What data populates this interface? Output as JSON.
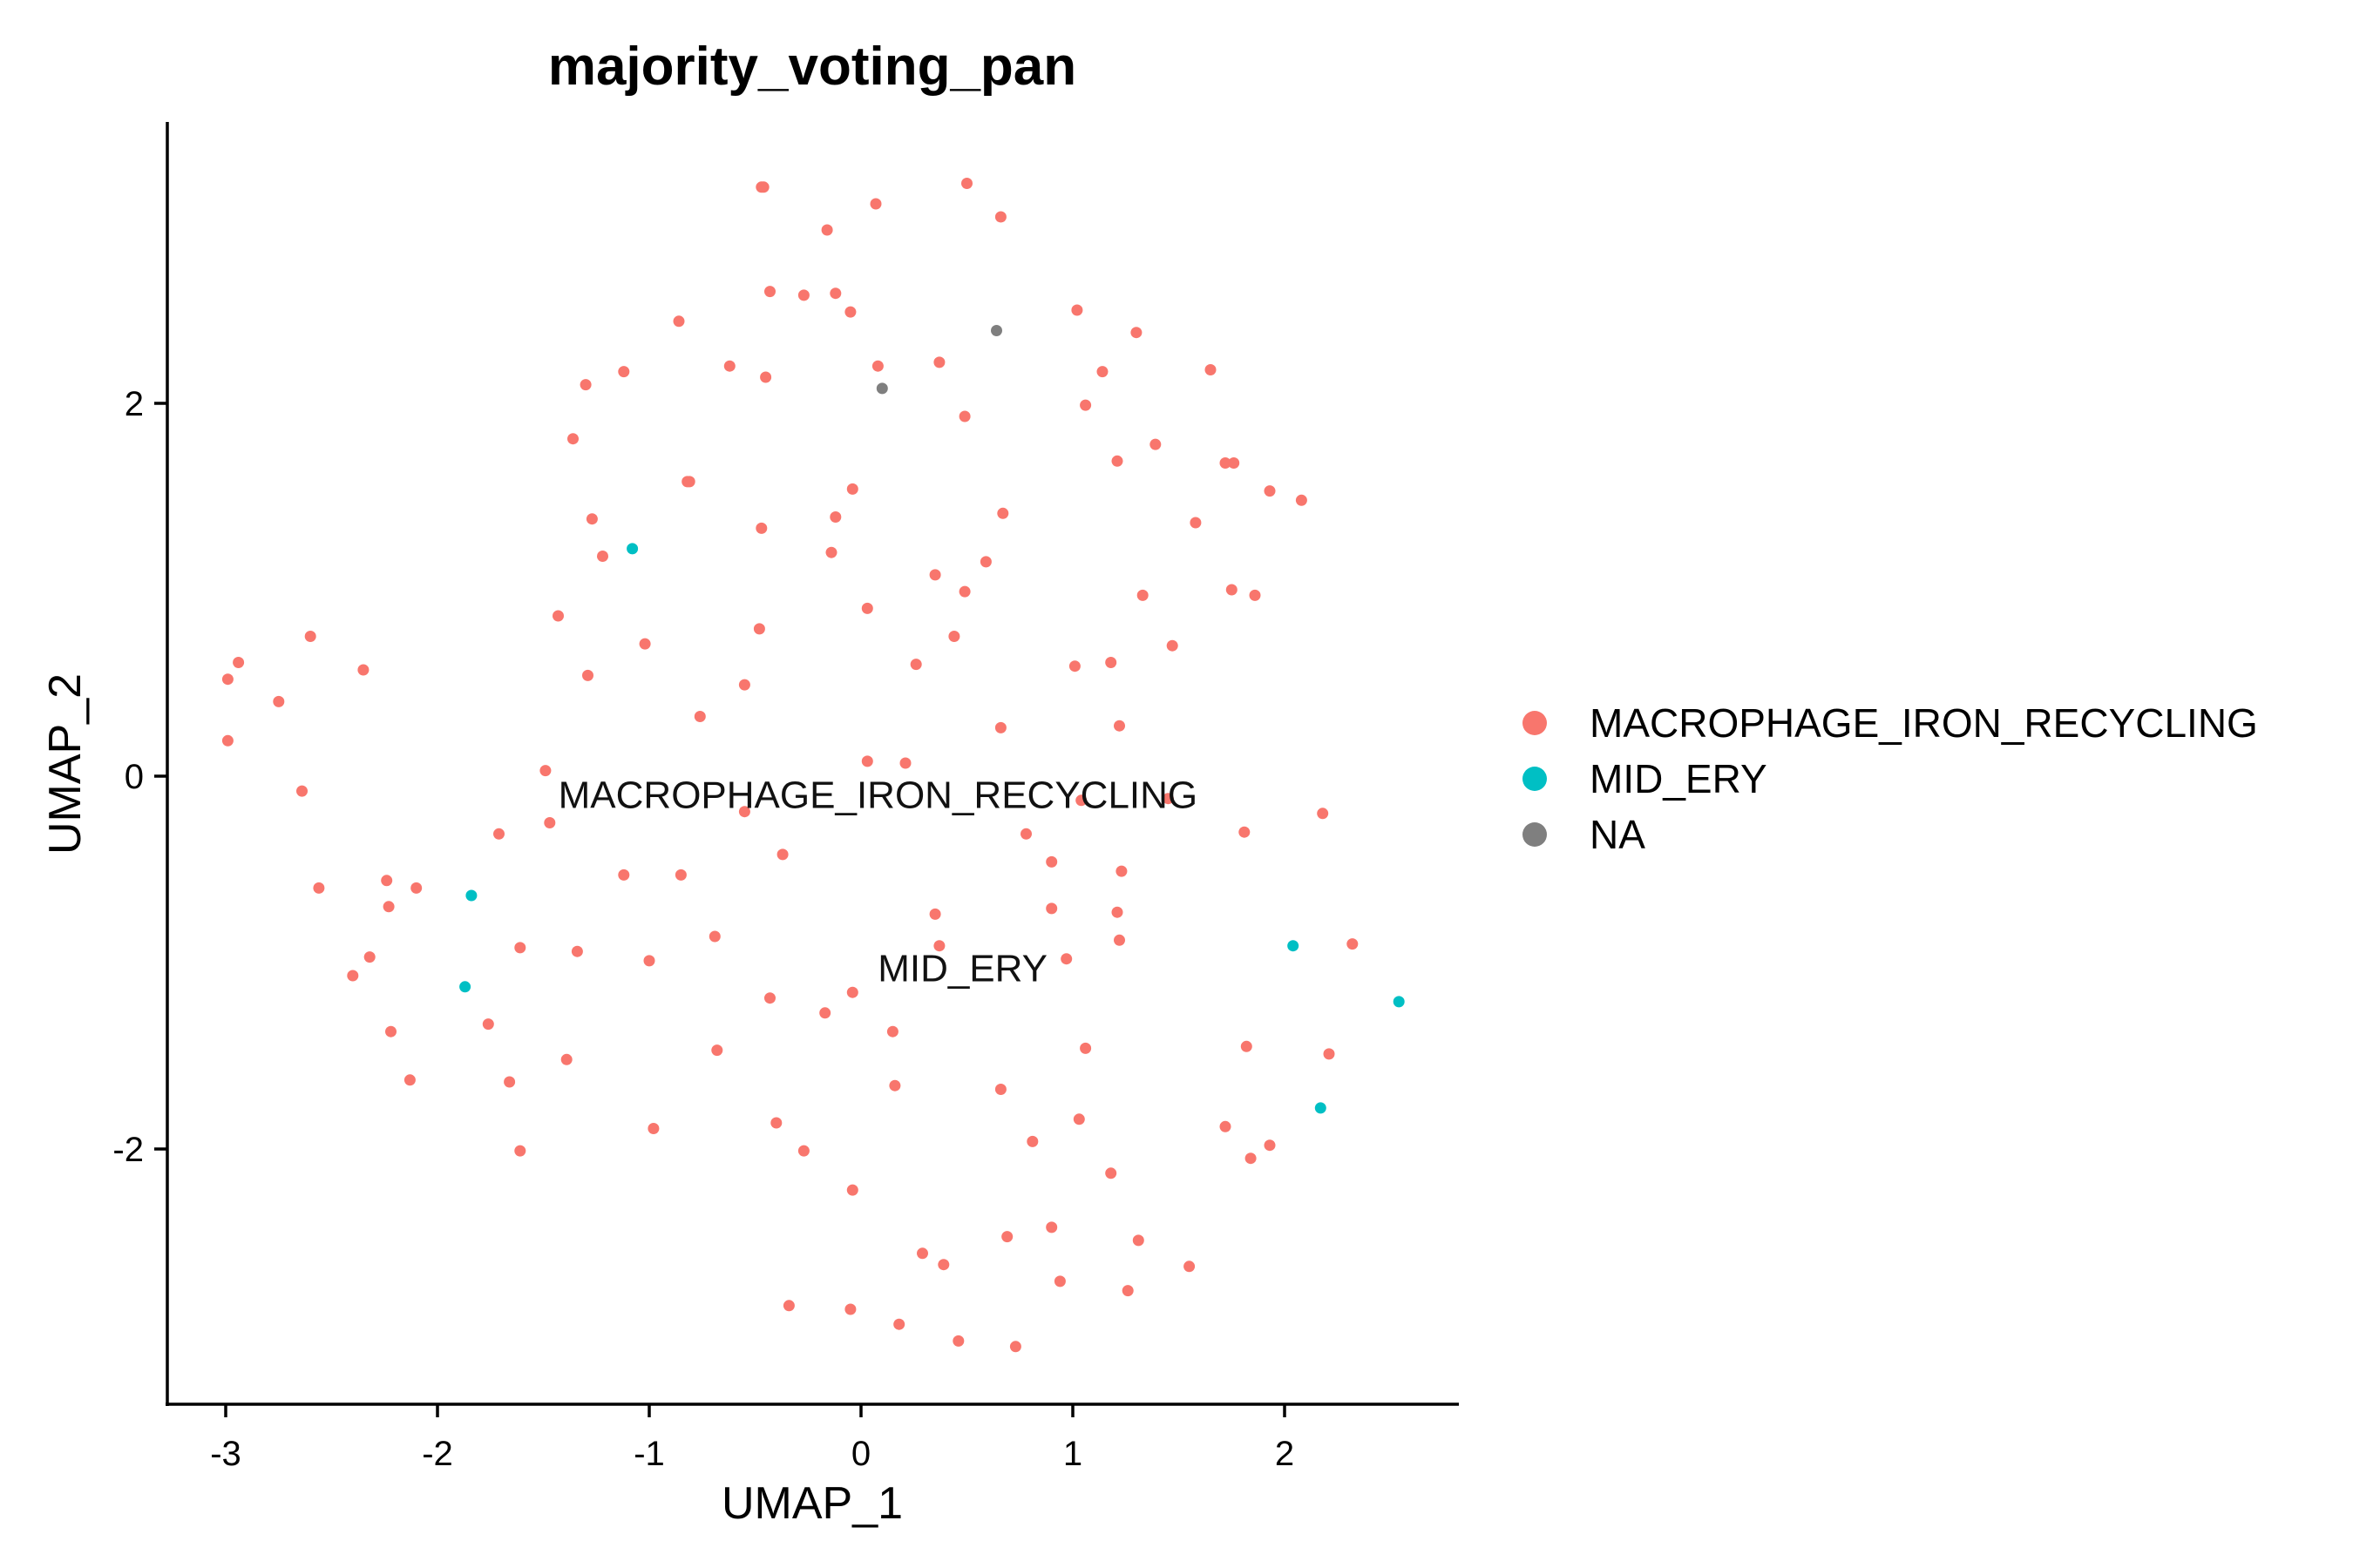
{
  "chart_data": {
    "type": "scatter",
    "title": "majority_voting_pan",
    "xlabel": "UMAP_1",
    "ylabel": "UMAP_2",
    "xlim": [
      -3.3,
      2.8
    ],
    "ylim": [
      -3.35,
      3.5
    ],
    "xticks": [
      -3,
      -2,
      -1,
      0,
      1,
      2
    ],
    "yticks": [
      -2,
      0,
      2
    ],
    "grid": false,
    "legend_position": "right",
    "annotations": [
      {
        "text": "MACROPHAGE_IRON_RECYCLING",
        "x": 0.08,
        "y": -0.1
      },
      {
        "text": "MID_ERY",
        "x": 0.48,
        "y": -1.03
      }
    ],
    "series": [
      {
        "name": "MACROPHAGE_IRON_RECYCLING",
        "color": "#F8766D",
        "points": [
          [
            -0.46,
            3.16
          ],
          [
            -0.47,
            3.16
          ],
          [
            0.07,
            3.07
          ],
          [
            0.5,
            3.18
          ],
          [
            0.66,
            3.0
          ],
          [
            -0.16,
            2.93
          ],
          [
            -0.43,
            2.6
          ],
          [
            -0.27,
            2.58
          ],
          [
            -0.12,
            2.59
          ],
          [
            -0.05,
            2.49
          ],
          [
            1.02,
            2.5
          ],
          [
            1.3,
            2.38
          ],
          [
            -0.86,
            2.44
          ],
          [
            0.08,
            2.2
          ],
          [
            0.37,
            2.22
          ],
          [
            -0.62,
            2.2
          ],
          [
            -0.45,
            2.14
          ],
          [
            -1.12,
            2.17
          ],
          [
            -1.3,
            2.1
          ],
          [
            1.14,
            2.17
          ],
          [
            1.65,
            2.18
          ],
          [
            1.06,
            1.99
          ],
          [
            0.49,
            1.93
          ],
          [
            -1.36,
            1.81
          ],
          [
            1.21,
            1.69
          ],
          [
            1.39,
            1.78
          ],
          [
            -0.81,
            1.58
          ],
          [
            -0.82,
            1.58
          ],
          [
            1.72,
            1.68
          ],
          [
            1.76,
            1.68
          ],
          [
            1.93,
            1.53
          ],
          [
            2.08,
            1.48
          ],
          [
            -1.27,
            1.38
          ],
          [
            -0.47,
            1.33
          ],
          [
            -0.04,
            1.54
          ],
          [
            -0.12,
            1.39
          ],
          [
            0.67,
            1.41
          ],
          [
            1.58,
            1.36
          ],
          [
            -0.14,
            1.2
          ],
          [
            -1.22,
            1.18
          ],
          [
            0.59,
            1.15
          ],
          [
            0.35,
            1.08
          ],
          [
            0.49,
            0.99
          ],
          [
            1.33,
            0.97
          ],
          [
            1.75,
            1.0
          ],
          [
            1.86,
            0.97
          ],
          [
            -1.43,
            0.86
          ],
          [
            0.03,
            0.9
          ],
          [
            -0.48,
            0.79
          ],
          [
            0.44,
            0.75
          ],
          [
            -1.02,
            0.71
          ],
          [
            1.47,
            0.7
          ],
          [
            -2.6,
            0.75
          ],
          [
            -2.35,
            0.57
          ],
          [
            -2.94,
            0.61
          ],
          [
            -2.99,
            0.52
          ],
          [
            0.26,
            0.6
          ],
          [
            1.01,
            0.59
          ],
          [
            1.18,
            0.61
          ],
          [
            -1.29,
            0.54
          ],
          [
            -0.55,
            0.49
          ],
          [
            -2.75,
            0.4
          ],
          [
            -0.76,
            0.32
          ],
          [
            0.66,
            0.26
          ],
          [
            1.22,
            0.27
          ],
          [
            -2.99,
            0.19
          ],
          [
            0.03,
            0.08
          ],
          [
            0.21,
            0.07
          ],
          [
            -1.49,
            0.03
          ],
          [
            -2.64,
            -0.08
          ],
          [
            1.04,
            -0.13
          ],
          [
            1.45,
            -0.12
          ],
          [
            2.18,
            -0.2
          ],
          [
            -1.47,
            -0.25
          ],
          [
            -0.55,
            -0.19
          ],
          [
            -1.71,
            -0.31
          ],
          [
            0.78,
            -0.31
          ],
          [
            1.81,
            -0.3
          ],
          [
            -0.37,
            -0.42
          ],
          [
            0.9,
            -0.46
          ],
          [
            -1.12,
            -0.53
          ],
          [
            -0.85,
            -0.53
          ],
          [
            1.23,
            -0.51
          ],
          [
            -2.56,
            -0.6
          ],
          [
            -2.24,
            -0.56
          ],
          [
            -2.1,
            -0.6
          ],
          [
            -2.23,
            -0.7
          ],
          [
            0.35,
            -0.74
          ],
          [
            0.9,
            -0.71
          ],
          [
            1.21,
            -0.73
          ],
          [
            -0.69,
            -0.86
          ],
          [
            -1.61,
            -0.92
          ],
          [
            -1.34,
            -0.94
          ],
          [
            0.37,
            -0.91
          ],
          [
            1.22,
            -0.88
          ],
          [
            2.32,
            -0.9
          ],
          [
            -2.32,
            -0.97
          ],
          [
            -1.0,
            -0.99
          ],
          [
            0.97,
            -0.98
          ],
          [
            -2.4,
            -1.07
          ],
          [
            -0.43,
            -1.19
          ],
          [
            -0.17,
            -1.27
          ],
          [
            -0.04,
            -1.16
          ],
          [
            -1.76,
            -1.33
          ],
          [
            -2.22,
            -1.37
          ],
          [
            0.15,
            -1.37
          ],
          [
            1.06,
            -1.46
          ],
          [
            -0.68,
            -1.47
          ],
          [
            -1.39,
            -1.52
          ],
          [
            1.82,
            -1.45
          ],
          [
            2.21,
            -1.49
          ],
          [
            -2.13,
            -1.63
          ],
          [
            -1.66,
            -1.64
          ],
          [
            0.16,
            -1.66
          ],
          [
            0.66,
            -1.68
          ],
          [
            -0.4,
            -1.86
          ],
          [
            1.03,
            -1.84
          ],
          [
            -0.98,
            -1.89
          ],
          [
            1.72,
            -1.88
          ],
          [
            0.81,
            -1.96
          ],
          [
            -1.61,
            -2.01
          ],
          [
            -0.27,
            -2.01
          ],
          [
            1.84,
            -2.05
          ],
          [
            1.93,
            -1.98
          ],
          [
            1.18,
            -2.13
          ],
          [
            -0.04,
            -2.22
          ],
          [
            0.9,
            -2.42
          ],
          [
            0.69,
            -2.47
          ],
          [
            1.31,
            -2.49
          ],
          [
            0.29,
            -2.56
          ],
          [
            0.39,
            -2.62
          ],
          [
            1.55,
            -2.63
          ],
          [
            0.94,
            -2.71
          ],
          [
            1.26,
            -2.76
          ],
          [
            -0.34,
            -2.84
          ],
          [
            -0.05,
            -2.86
          ],
          [
            0.18,
            -2.94
          ],
          [
            0.46,
            -3.03
          ],
          [
            0.73,
            -3.06
          ]
        ]
      },
      {
        "name": "MID_ERY",
        "color": "#00BFC4",
        "points": [
          [
            -1.08,
            1.22
          ],
          [
            -1.84,
            -0.64
          ],
          [
            -1.87,
            -1.13
          ],
          [
            2.04,
            -0.91
          ],
          [
            2.54,
            -1.21
          ],
          [
            2.17,
            -1.78
          ]
        ]
      },
      {
        "name": "NA",
        "color": "#7F7F7F",
        "points": [
          [
            0.64,
            2.39
          ],
          [
            0.1,
            2.08
          ]
        ]
      }
    ]
  }
}
